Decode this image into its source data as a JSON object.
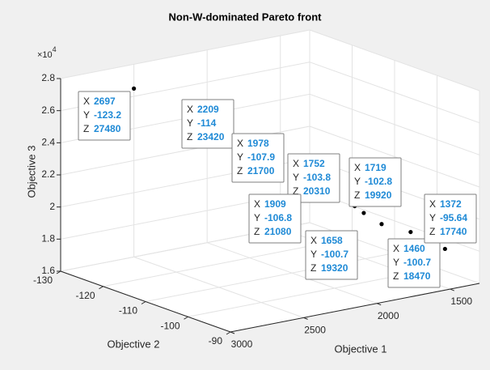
{
  "chart_data": {
    "type": "scatter3d",
    "title": "Non-W-dominated Pareto front",
    "xlabel": "Objective 1",
    "ylabel": "Objective 2",
    "zlabel": "Objective 3",
    "z_multiplier": {
      "base": "×10",
      "power": "4"
    },
    "xlim": [
      1300,
      3000
    ],
    "ylim": [
      -130,
      -90
    ],
    "zlim": [
      16000,
      28000
    ],
    "xticks": [
      1500,
      2000,
      2500,
      3000
    ],
    "yticks": [
      -130,
      -120,
      -110,
      -100,
      -90
    ],
    "zticks": [
      {
        "value": 16000,
        "label": "1.6"
      },
      {
        "value": 18000,
        "label": "1.8"
      },
      {
        "value": 20000,
        "label": "2"
      },
      {
        "value": 22000,
        "label": "2.2"
      },
      {
        "value": 24000,
        "label": "2.4"
      },
      {
        "value": 26000,
        "label": "2.6"
      },
      {
        "value": 28000,
        "label": "2.8"
      }
    ],
    "grid": true,
    "color": "#000000",
    "tip_labels": [
      "X",
      "Y",
      "Z"
    ],
    "x": [
      2697,
      2209,
      1978,
      1752,
      1719,
      1909,
      1658,
      1460,
      1372
    ],
    "y": [
      -123.2,
      -114,
      -107.9,
      -103.8,
      -102.8,
      -106.8,
      -100.7,
      -100.7,
      -95.64
    ],
    "z": [
      27480,
      23420,
      21700,
      20310,
      19920,
      21080,
      19320,
      18470,
      17740
    ]
  }
}
